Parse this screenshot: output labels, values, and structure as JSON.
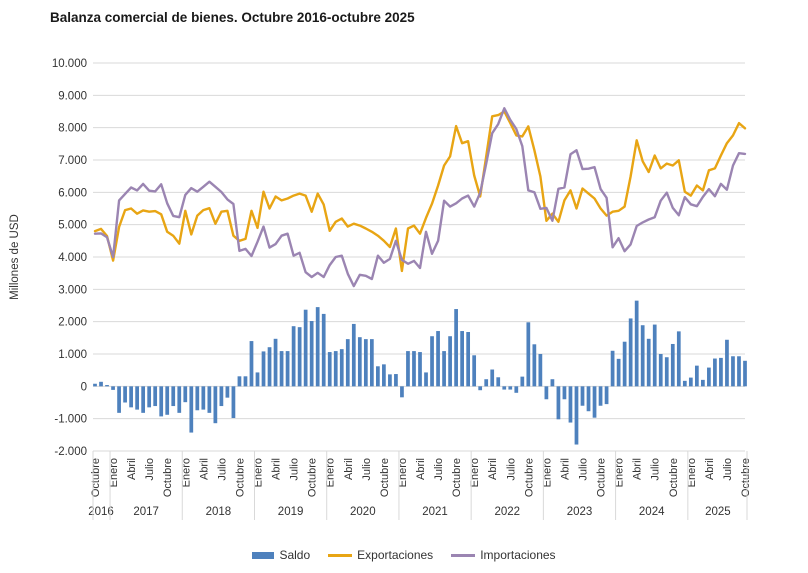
{
  "title": "Balanza comercial de bienes. Octubre 2016-octubre 2025",
  "y_axis": {
    "label": "Millones de USD",
    "min": -2000,
    "max": 10000,
    "step": 1000,
    "tick_labels": [
      "10.000",
      "9.000",
      "8.000",
      "7.000",
      "6.000",
      "5.000",
      "4.000",
      "3.000",
      "2.000",
      "1.000",
      "0",
      "-1.000",
      "-2.000"
    ]
  },
  "x_axis": {
    "month_ticks": [
      {
        "i": 0,
        "label": "Octubre"
      },
      {
        "i": 3,
        "label": "Enero"
      },
      {
        "i": 6,
        "label": "Abril"
      },
      {
        "i": 9,
        "label": "Julio"
      },
      {
        "i": 12,
        "label": "Octubre"
      },
      {
        "i": 15,
        "label": "Enero"
      },
      {
        "i": 18,
        "label": "Abril"
      },
      {
        "i": 21,
        "label": "Julio"
      },
      {
        "i": 24,
        "label": "Octubre"
      },
      {
        "i": 27,
        "label": "Enero"
      },
      {
        "i": 30,
        "label": "Abril"
      },
      {
        "i": 33,
        "label": "Julio"
      },
      {
        "i": 36,
        "label": "Octubre"
      },
      {
        "i": 39,
        "label": "Enero"
      },
      {
        "i": 42,
        "label": "Abril"
      },
      {
        "i": 45,
        "label": "Julio"
      },
      {
        "i": 48,
        "label": "Octubre"
      },
      {
        "i": 51,
        "label": "Enero"
      },
      {
        "i": 54,
        "label": "Abril"
      },
      {
        "i": 57,
        "label": "Julio"
      },
      {
        "i": 60,
        "label": "Octubre"
      },
      {
        "i": 63,
        "label": "Enero"
      },
      {
        "i": 66,
        "label": "Abril"
      },
      {
        "i": 69,
        "label": "Julio"
      },
      {
        "i": 72,
        "label": "Octubre"
      },
      {
        "i": 75,
        "label": "Enero"
      },
      {
        "i": 78,
        "label": "Abril"
      },
      {
        "i": 81,
        "label": "Julio"
      },
      {
        "i": 84,
        "label": "Octubre"
      },
      {
        "i": 87,
        "label": "Enero"
      },
      {
        "i": 90,
        "label": "Abril"
      },
      {
        "i": 93,
        "label": "Julio"
      },
      {
        "i": 96,
        "label": "Octubre"
      },
      {
        "i": 99,
        "label": "Enero"
      },
      {
        "i": 102,
        "label": "Abril"
      },
      {
        "i": 105,
        "label": "Julio"
      },
      {
        "i": 108,
        "label": "Octubre"
      }
    ],
    "years": [
      {
        "label": "2016",
        "center_i": 1
      },
      {
        "label": "2017",
        "center_i": 8.5
      },
      {
        "label": "2018",
        "center_i": 20.5
      },
      {
        "label": "2019",
        "center_i": 32.5
      },
      {
        "label": "2020",
        "center_i": 44.5
      },
      {
        "label": "2021",
        "center_i": 56.5
      },
      {
        "label": "2022",
        "center_i": 68.5
      },
      {
        "label": "2023",
        "center_i": 80.5
      },
      {
        "label": "2024",
        "center_i": 92.5
      },
      {
        "label": "2025",
        "center_i": 103.5
      }
    ],
    "year_separators_i": [
      2.5,
      14.5,
      26.5,
      38.5,
      50.5,
      62.5,
      74.5,
      86.5,
      98.5
    ]
  },
  "legend": {
    "items": [
      {
        "label": "Saldo",
        "type": "bar",
        "color": "#4e81bd"
      },
      {
        "label": "Exportaciones",
        "type": "line",
        "color": "#e8a514"
      },
      {
        "label": "Importaciones",
        "type": "line",
        "color": "#9b85b2"
      }
    ]
  },
  "colors": {
    "saldo": "#4e81bd",
    "exportaciones": "#e8a514",
    "importaciones": "#9b85b2",
    "gridline": "#d9d9d9",
    "axis_text": "#333333"
  },
  "chart_data": {
    "type": "combo-bar-line",
    "x_start": "Octubre 2016",
    "x_end": "Octubre 2025",
    "x_frequency": "monthly",
    "n_points": 109,
    "title": "Balanza comercial de bienes. Octubre 2016-octubre 2025",
    "ylabel": "Millones de USD",
    "ylim": [
      -2000,
      10000
    ],
    "grid": true,
    "legend_position": "bottom",
    "series": [
      {
        "name": "Saldo",
        "type": "bar",
        "color": "#4e81bd",
        "values": [
          80,
          140,
          40,
          -110,
          -820,
          -500,
          -650,
          -720,
          -820,
          -650,
          -610,
          -930,
          -880,
          -610,
          -820,
          -490,
          -1430,
          -740,
          -720,
          -820,
          -1140,
          -610,
          -350,
          -980,
          310,
          310,
          1400,
          430,
          1080,
          1210,
          1470,
          1090,
          1090,
          1860,
          1830,
          2370,
          2020,
          2450,
          2240,
          1060,
          1090,
          1150,
          1460,
          1930,
          1520,
          1460,
          1460,
          620,
          680,
          370,
          380,
          -340,
          1090,
          1090,
          1060,
          430,
          1550,
          1710,
          1090,
          1550,
          2390,
          1710,
          1680,
          960,
          -120,
          220,
          520,
          280,
          -100,
          -100,
          -200,
          300,
          1980,
          1300,
          1000,
          -400,
          220,
          -1020,
          -400,
          -1120,
          -1800,
          -600,
          -770,
          -970,
          -600,
          -550,
          1100,
          850,
          1380,
          2100,
          2650,
          1890,
          1470,
          1910,
          1000,
          900,
          1310,
          1700,
          170,
          270,
          640,
          200,
          580,
          860,
          880,
          1440,
          930,
          930,
          790
        ]
      },
      {
        "name": "Exportaciones",
        "type": "line",
        "color": "#e8a514",
        "values": [
          4800,
          4870,
          4650,
          3890,
          4930,
          5450,
          5500,
          5340,
          5440,
          5400,
          5420,
          5320,
          4780,
          4660,
          4410,
          5430,
          4700,
          5280,
          5450,
          5510,
          5030,
          5400,
          5430,
          4660,
          4500,
          4560,
          5430,
          4900,
          6020,
          5500,
          5870,
          5750,
          5810,
          5900,
          5960,
          5900,
          5400,
          5960,
          5620,
          4810,
          5090,
          5190,
          4940,
          5030,
          4970,
          4880,
          4780,
          4660,
          4500,
          4310,
          4880,
          3570,
          4880,
          4970,
          4720,
          5210,
          5650,
          6210,
          6830,
          7110,
          8050,
          7520,
          7580,
          6520,
          5870,
          7110,
          8350,
          8390,
          8500,
          8140,
          7760,
          7730,
          8040,
          7300,
          6490,
          5120,
          5340,
          5090,
          5750,
          6060,
          5500,
          6120,
          5960,
          5810,
          5500,
          5280,
          5400,
          5430,
          5560,
          6490,
          7610,
          6960,
          6630,
          7140,
          6740,
          6890,
          6830,
          6990,
          6020,
          5900,
          6210,
          6060,
          6680,
          6740,
          7140,
          7520,
          7760,
          8140,
          7980
        ]
      },
      {
        "name": "Importaciones",
        "type": "line",
        "color": "#9b85b2",
        "values": [
          4720,
          4730,
          4610,
          4000,
          5750,
          5950,
          6150,
          6060,
          6260,
          6050,
          6030,
          6250,
          5660,
          5270,
          5230,
          5920,
          6130,
          6020,
          6170,
          6330,
          6170,
          6010,
          5780,
          5640,
          4190,
          4250,
          4030,
          4470,
          4940,
          4290,
          4400,
          4660,
          4720,
          4040,
          4130,
          3530,
          3380,
          3510,
          3380,
          3750,
          4000,
          4040,
          3480,
          3100,
          3450,
          3420,
          3320,
          4040,
          3820,
          3940,
          4500,
          3910,
          3790,
          3880,
          3660,
          4780,
          4100,
          4500,
          5740,
          5560,
          5660,
          5810,
          5900,
          5560,
          5990,
          6890,
          7830,
          8110,
          8600,
          8240,
          7960,
          7430,
          6060,
          6000,
          5490,
          5520,
          5120,
          6110,
          6150,
          7180,
          7300,
          6720,
          6730,
          6780,
          6100,
          5830,
          4300,
          4580,
          4180,
          4390,
          4960,
          5070,
          5160,
          5230,
          5740,
          5990,
          5520,
          5290,
          5850,
          5630,
          5570,
          5860,
          6100,
          5880,
          6260,
          6080,
          6830,
          7210,
          7190
        ]
      }
    ]
  }
}
